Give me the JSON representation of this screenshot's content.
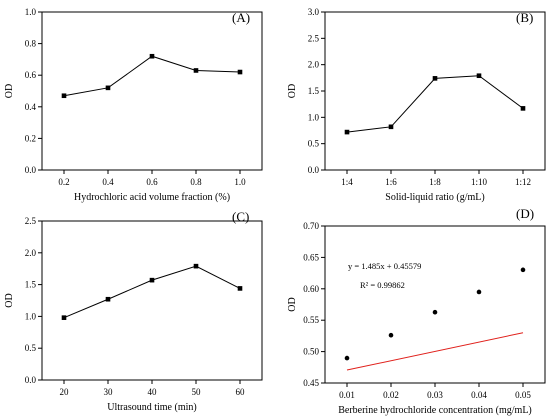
{
  "chart_data": [
    {
      "type": "line",
      "panel_label": "(A)",
      "xlabel": "Hydrochloric acid volume fraction (%)",
      "ylabel": "OD",
      "x_tick_labels": [
        "0.2",
        "0.4",
        "0.6",
        "0.8",
        "1.0"
      ],
      "y_ticks": [
        0.0,
        0.2,
        0.4,
        0.6,
        0.8,
        1.0
      ],
      "y_tick_labels": [
        "0.0",
        "0.2",
        "0.4",
        "0.6",
        "0.8",
        "1.0"
      ],
      "xlim": [
        0.1,
        1.1
      ],
      "ylim": [
        0.0,
        1.0
      ],
      "x": [
        0.2,
        0.4,
        0.6,
        0.8,
        1.0
      ],
      "values": [
        0.47,
        0.52,
        0.72,
        0.63,
        0.62
      ],
      "line_color": "#000000",
      "marker": "square"
    },
    {
      "type": "line",
      "panel_label": "(B)",
      "xlabel": "Solid-liquid ratio (g/mL)",
      "ylabel": "OD",
      "x_tick_labels": [
        "1:4",
        "1:6",
        "1:8",
        "1:10",
        "1:12"
      ],
      "y_ticks": [
        0.0,
        0.5,
        1.0,
        1.5,
        2.0,
        2.5,
        3.0
      ],
      "y_tick_labels": [
        "0.0",
        "0.5",
        "1.0",
        "1.5",
        "2.0",
        "2.5",
        "3.0"
      ],
      "xlim": [
        0.5,
        5.5
      ],
      "ylim": [
        0.0,
        3.0
      ],
      "x": [
        1,
        2,
        3,
        4,
        5
      ],
      "values": [
        0.72,
        0.82,
        1.74,
        1.79,
        1.17
      ],
      "line_color": "#000000",
      "marker": "square"
    },
    {
      "type": "line",
      "panel_label": "(C)",
      "xlabel": "Ultrasound time (min)",
      "ylabel": "OD",
      "x_tick_labels": [
        "20",
        "30",
        "40",
        "50",
        "60"
      ],
      "y_ticks": [
        0.0,
        0.5,
        1.0,
        1.5,
        2.0,
        2.5
      ],
      "y_tick_labels": [
        "0.0",
        "0.5",
        "1.0",
        "1.5",
        "2.0",
        "2.5"
      ],
      "xlim": [
        15,
        65
      ],
      "ylim": [
        0.0,
        2.5
      ],
      "x": [
        20,
        30,
        40,
        50,
        60
      ],
      "values": [
        0.98,
        1.27,
        1.57,
        1.79,
        1.44
      ],
      "line_color": "#000000",
      "marker": "square"
    },
    {
      "type": "scatter",
      "panel_label": "(D)",
      "xlabel": "Berberine hydrochloride concentration (mg/mL)",
      "ylabel": "OD",
      "x_tick_labels": [
        "0.01",
        "0.02",
        "0.03",
        "0.04",
        "0.05"
      ],
      "y_ticks": [
        0.45,
        0.5,
        0.55,
        0.6,
        0.65,
        0.7
      ],
      "y_tick_labels": [
        "0.45",
        "0.50",
        "0.55",
        "0.60",
        "0.65",
        "0.70"
      ],
      "xlim": [
        0.005,
        0.055
      ],
      "ylim": [
        0.45,
        0.7
      ],
      "x": [
        0.01,
        0.02,
        0.03,
        0.04,
        0.05
      ],
      "values": [
        0.4897,
        0.5261,
        0.5627,
        0.595,
        0.6302
      ],
      "marker_color": "#000000",
      "marker": "circle",
      "fit": {
        "slope": 1.485,
        "intercept": 0.45579,
        "x_range": [
          0.01,
          0.05
        ],
        "color": "#e0201b"
      },
      "equation_text": "y = 1.485x + 0.45579",
      "r2_text": "R² = 0.99862"
    }
  ]
}
